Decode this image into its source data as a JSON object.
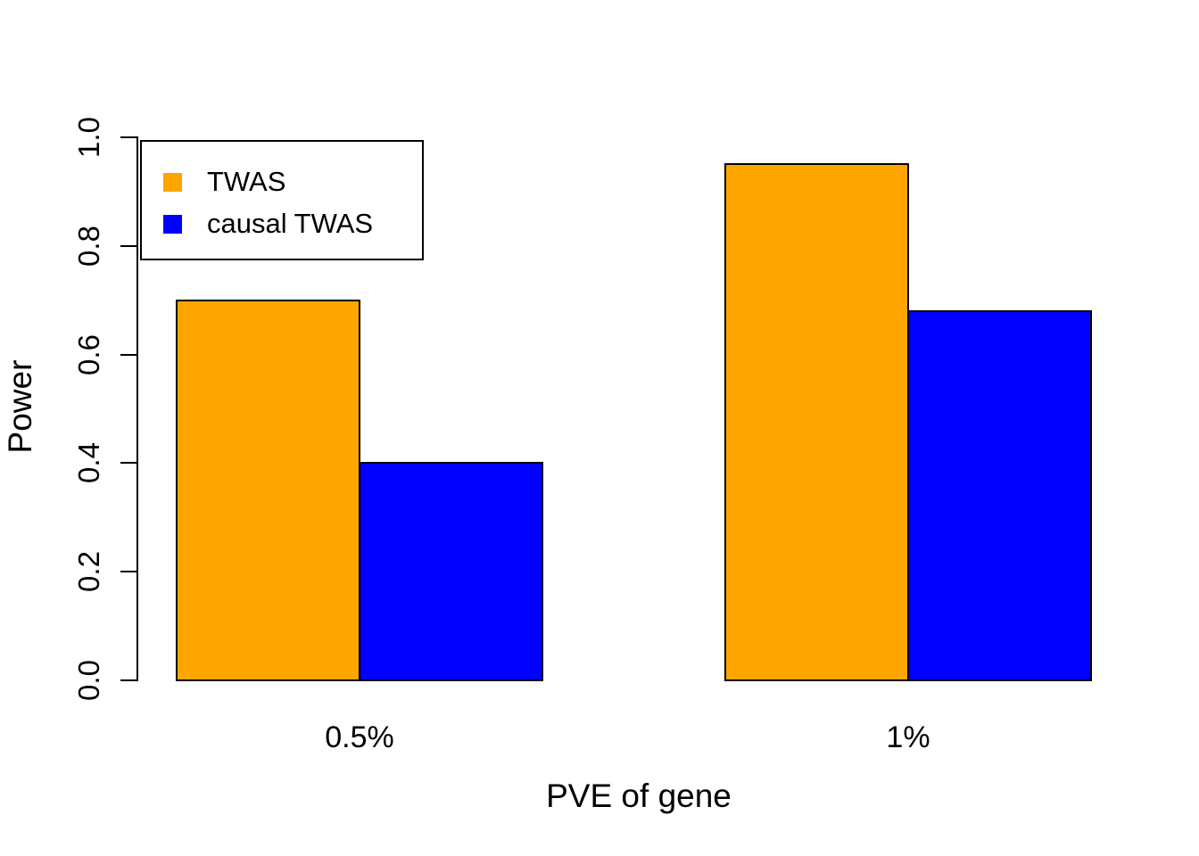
{
  "chart_data": {
    "type": "bar",
    "title": "",
    "xlabel": "PVE of gene",
    "ylabel": "Power",
    "categories": [
      "0.5%",
      "1%"
    ],
    "series": [
      {
        "name": "TWAS",
        "color": "#FFA500",
        "values": [
          0.7,
          0.95
        ]
      },
      {
        "name": "causal TWAS",
        "color": "#0000FF",
        "values": [
          0.4,
          0.68
        ]
      }
    ],
    "ylim": [
      0,
      1
    ],
    "yticks": [
      "0.0",
      "0.2",
      "0.4",
      "0.6",
      "0.8",
      "1.0"
    ],
    "grid": "off",
    "legend_position": "top-left",
    "bar_border_color": "#000000",
    "axis_color": "#000000",
    "background_color": "#FFFFFF"
  }
}
